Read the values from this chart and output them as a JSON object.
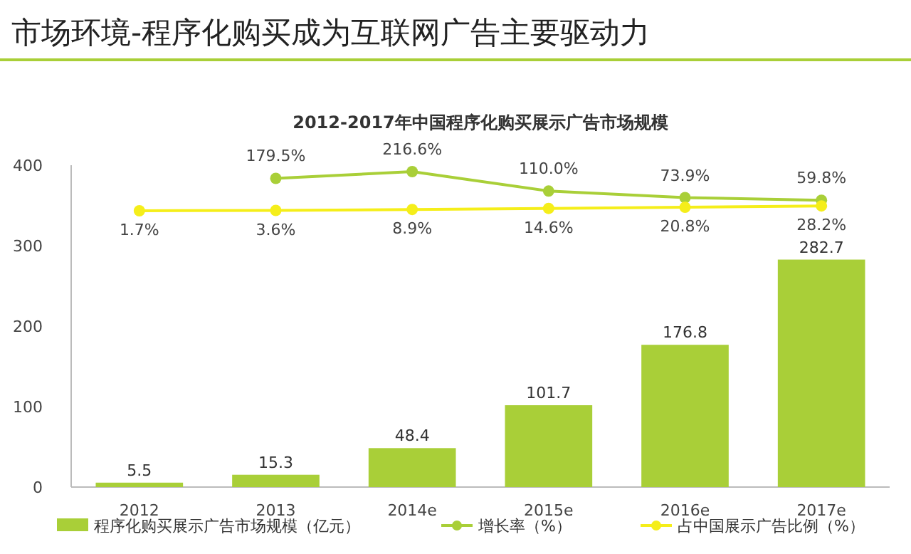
{
  "chart_data": {
    "type": "bar",
    "title": "市场环境-程序化购买成为互联网广告主要驱动力",
    "subtitle": "2012-2017年中国程序化购买展示广告市场规模",
    "categories": [
      "2012",
      "2013",
      "2014e",
      "2015e",
      "2016e",
      "2017e"
    ],
    "series": [
      {
        "name": "程序化购买展示广告市场规模（亿元）",
        "color": "#a9cf38",
        "values": [
          5.5,
          15.3,
          48.4,
          101.7,
          176.8,
          282.7
        ],
        "value_labels": [
          "5.5",
          "15.3",
          "48.4",
          "101.7",
          "176.8",
          "282.7"
        ]
      },
      {
        "name": "增长率（%）",
        "type": "line",
        "axis": "y2",
        "marker": "circle",
        "color": "#a9cf38",
        "values": [
          null,
          179.5,
          216.6,
          110.0,
          73.9,
          59.8
        ],
        "value_labels": [
          null,
          "179.5%",
          "216.6%",
          "110.0%",
          "73.9%",
          "59.8%"
        ]
      },
      {
        "name": "占中国展示广告比例（%）",
        "type": "line",
        "axis": "y2",
        "marker": "circle",
        "color": "#f5ee1a",
        "values": [
          1.7,
          3.6,
          8.9,
          14.6,
          20.8,
          28.2
        ],
        "value_labels": [
          "1.7%",
          "3.6%",
          "8.9%",
          "14.6%",
          "20.8%",
          "28.2%"
        ]
      }
    ],
    "ylim": [
      0,
      400
    ],
    "yticks": [
      0,
      100,
      200,
      300,
      400
    ],
    "legend": "bottom",
    "grid": false
  }
}
